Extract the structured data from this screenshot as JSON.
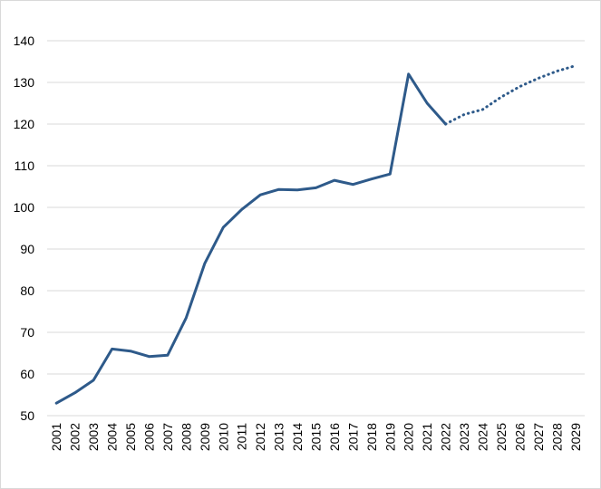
{
  "chart_data": {
    "type": "line",
    "title": "",
    "xlabel": "",
    "ylabel": "",
    "ylim": [
      50,
      140
    ],
    "yticks": [
      50,
      60,
      70,
      80,
      90,
      100,
      110,
      120,
      130,
      140
    ],
    "x_labels": [
      "2001",
      "2002",
      "2003",
      "2004",
      "2005",
      "2006",
      "2007",
      "2008",
      "2009",
      "2010",
      "2011",
      "2012",
      "2013",
      "2014",
      "2015",
      "2016",
      "2017",
      "2018",
      "2019",
      "2020",
      "2021",
      "2022",
      "2023",
      "2024",
      "2025",
      "2026",
      "2027",
      "2028",
      "2029"
    ],
    "grid": true,
    "legend": "none",
    "line_color": "#2e5a8a",
    "series": [
      {
        "style": "solid",
        "x": [
          "2001",
          "2002",
          "2003",
          "2004",
          "2005",
          "2006",
          "2007",
          "2008",
          "2009",
          "2010",
          "2011",
          "2012",
          "2013",
          "2014",
          "2015",
          "2016",
          "2017",
          "2018",
          "2019",
          "2020",
          "2021",
          "2022"
        ],
        "values": [
          53,
          55.5,
          58.5,
          66,
          65.5,
          64.2,
          64.5,
          73.5,
          86.5,
          95.2,
          99.5,
          103,
          104.3,
          104.2,
          104.7,
          106.5,
          105.5,
          106.8,
          108,
          132,
          125,
          120
        ]
      },
      {
        "style": "dotted",
        "x": [
          "2022",
          "2023",
          "2024",
          "2025",
          "2026",
          "2027",
          "2028",
          "2029"
        ],
        "values": [
          120,
          122.3,
          123.5,
          126.5,
          129,
          131,
          132.7,
          134
        ]
      }
    ]
  }
}
